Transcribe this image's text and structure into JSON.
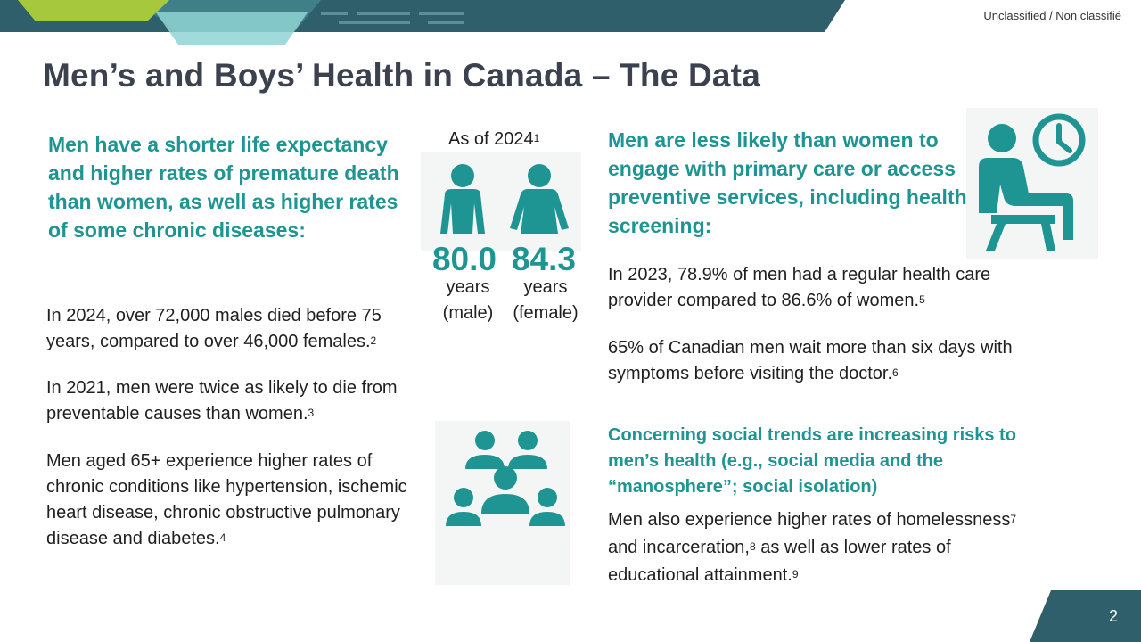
{
  "classification": "Unclassified / Non classifié",
  "title": "Men’s and Boys’ Health in Canada – The Data",
  "left": {
    "heading": "Men have a shorter life expectancy and higher rates of premature death than women, as well as higher rates of some chronic diseases:",
    "p1_text": "In 2024, over 72,000 males died before 75 years, compared to over 46,000 females.",
    "p1_ref": "2",
    "p2_text": "In 2021, men were twice as likely to die from preventable causes than women.",
    "p2_ref": "3",
    "p3_text": "Men aged 65+ experience higher rates of chronic conditions like hypertension, ischemic heart disease, chronic obstructive pulmonary disease and diabetes.",
    "p3_ref": "4"
  },
  "life_expectancy": {
    "as_of": "As of 2024",
    "as_of_ref": "1",
    "male_value": "80.0",
    "female_value": "84.3",
    "male_unit_1": "years",
    "male_unit_2": "(male)",
    "female_unit_1": "years",
    "female_unit_2": "(female)"
  },
  "right": {
    "heading": "Men are less likely than women to engage with primary care or access preventive services, including health screening:",
    "p4_text": "In 2023, 78.9% of men had a regular health care provider compared to 86.6% of women.",
    "p4_ref": "5",
    "p5_text": "65% of Canadian men wait more than six days with symptoms before visiting the doctor.",
    "p5_ref": "6",
    "social_heading": "Concerning social trends are increasing risks to men’s health (e.g., social media and the “manosphere”; social isolation)",
    "p6_a": "Men also experience higher rates of homelessness",
    "p6_ref_a": "7",
    "p6_b": " and incarceration,",
    "p6_ref_b": "8",
    "p6_c": " as well as lower rates of educational attainment.",
    "p6_ref_c": "9"
  },
  "page_number": "2",
  "colors": {
    "teal": "#1e9592",
    "title": "#3c4150",
    "banner_dark": "#2f5f6a",
    "banner_lime": "#a6c83c"
  },
  "icons": [
    "male-person-icon",
    "female-person-icon",
    "person-waiting-clock-icon",
    "group-of-people-icon"
  ]
}
